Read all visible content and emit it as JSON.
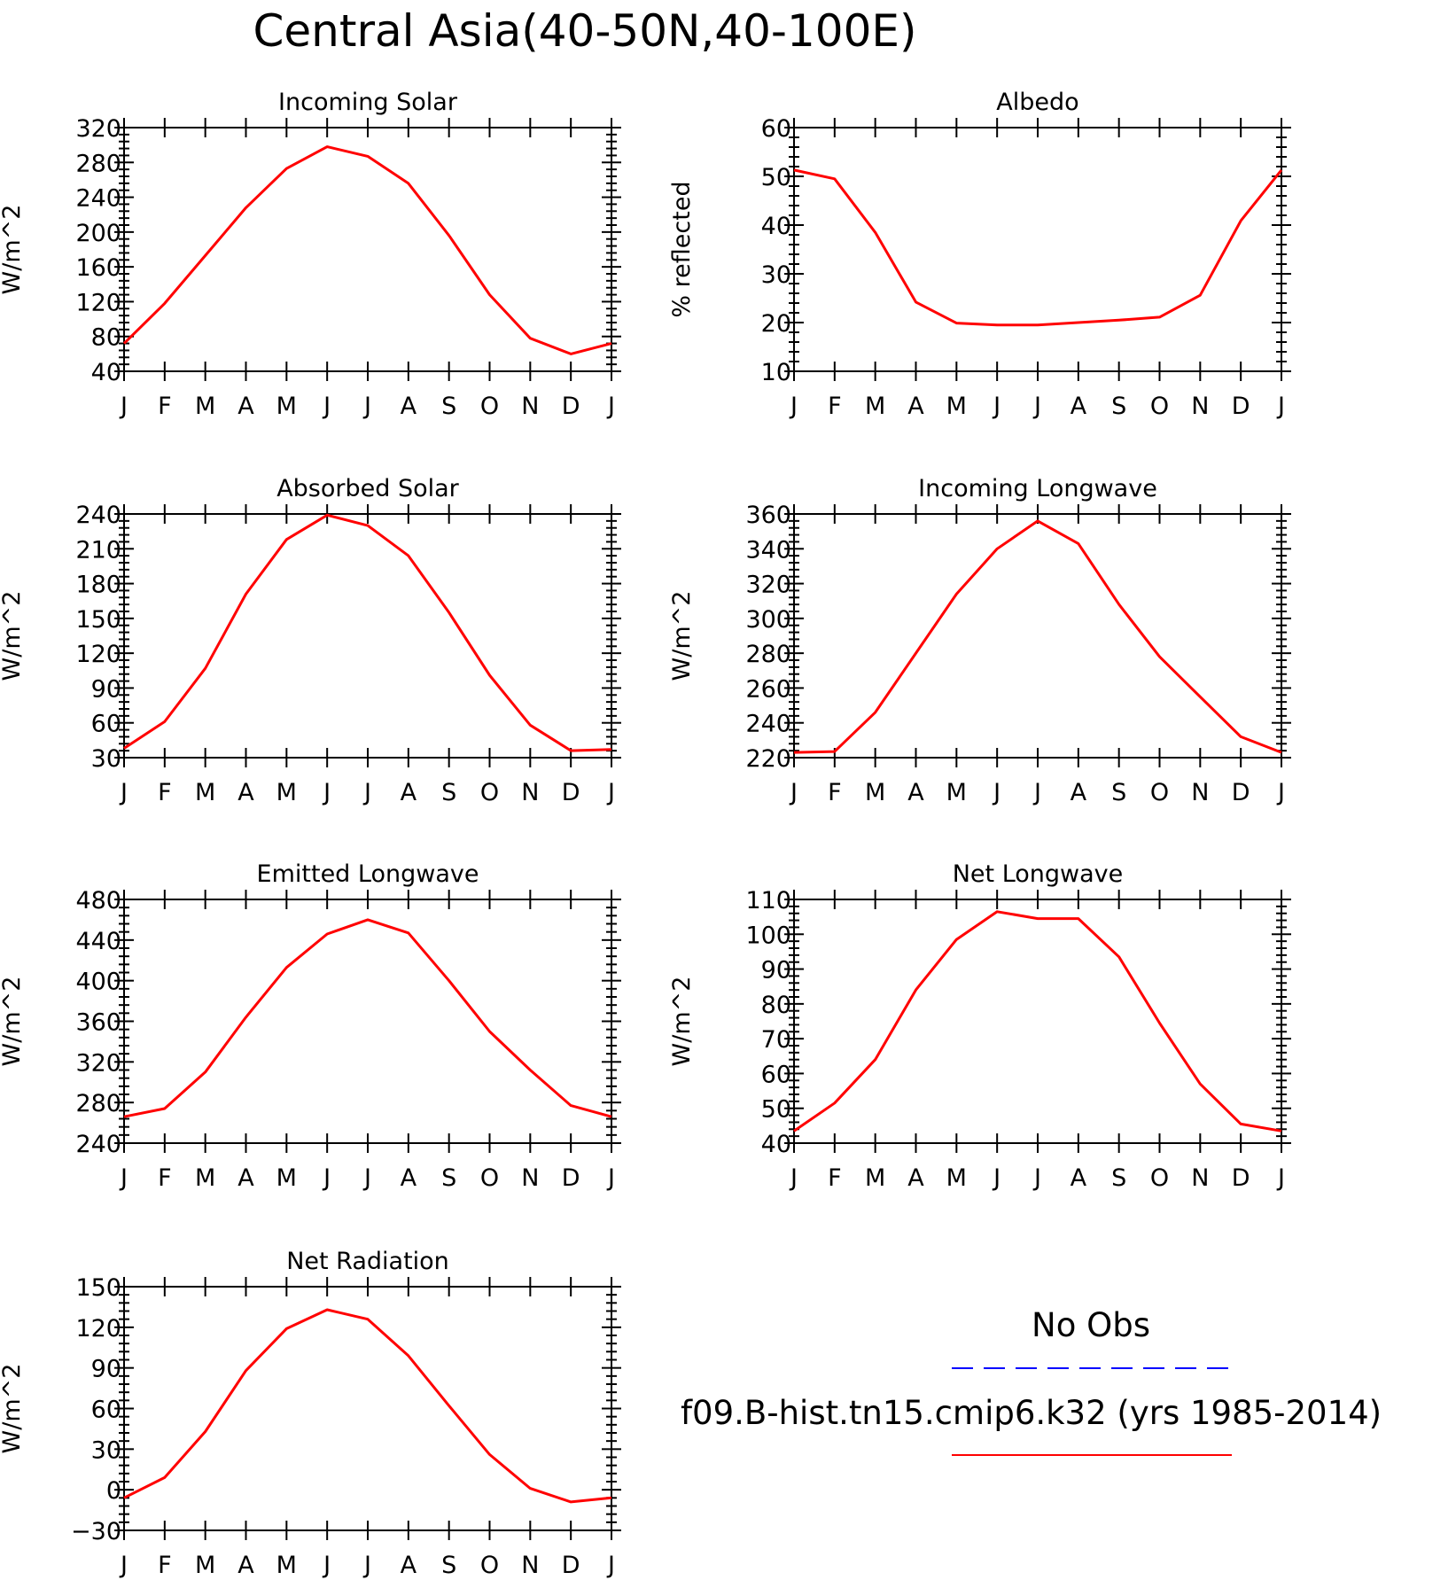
{
  "title": "Central Asia(40-50N,40-100E)",
  "months": [
    "J",
    "F",
    "M",
    "A",
    "M",
    "J",
    "J",
    "A",
    "S",
    "O",
    "N",
    "D",
    "J"
  ],
  "colors": {
    "model": "#ff0000",
    "obs": "#0000ff",
    "axis": "#000000"
  },
  "legend": {
    "obs_label": "No Obs",
    "model_label": "f09.B-hist.tn15.cmip6.k32 (yrs 1985-2014)"
  },
  "chart_data": [
    {
      "type": "line",
      "title": "Incoming Solar",
      "ylabel": "W/m^2",
      "ylim": [
        40,
        320
      ],
      "yticks": [
        40,
        80,
        120,
        160,
        200,
        240,
        280,
        320
      ],
      "categories": [
        "J",
        "F",
        "M",
        "A",
        "M",
        "J",
        "J",
        "A",
        "S",
        "O",
        "N",
        "D",
        "J"
      ],
      "series": [
        {
          "values": [
            72,
            118,
            173,
            228,
            273,
            298,
            287,
            256,
            196,
            128,
            78,
            60,
            72
          ]
        }
      ]
    },
    {
      "type": "line",
      "title": "Albedo",
      "ylabel": "% reflected",
      "ylim": [
        10,
        60
      ],
      "yticks": [
        10,
        20,
        30,
        40,
        50,
        60
      ],
      "categories": [
        "J",
        "F",
        "M",
        "A",
        "M",
        "J",
        "J",
        "A",
        "S",
        "O",
        "N",
        "D",
        "J"
      ],
      "series": [
        {
          "values": [
            51.3,
            49.5,
            38.5,
            24.2,
            19.9,
            19.5,
            19.5,
            20,
            20.5,
            21.1,
            25.6,
            40.9,
            51.3
          ]
        }
      ]
    },
    {
      "type": "line",
      "title": "Absorbed Solar",
      "ylabel": "W/m^2",
      "ylim": [
        30,
        240
      ],
      "yticks": [
        30,
        60,
        90,
        120,
        150,
        180,
        210,
        240
      ],
      "categories": [
        "J",
        "F",
        "M",
        "A",
        "M",
        "J",
        "J",
        "A",
        "S",
        "O",
        "N",
        "D",
        "J"
      ],
      "series": [
        {
          "values": [
            38,
            61,
            107,
            171,
            218,
            239,
            230,
            204,
            155,
            101,
            58,
            36,
            37
          ]
        }
      ]
    },
    {
      "type": "line",
      "title": "Incoming Longwave",
      "ylabel": "W/m^2",
      "ylim": [
        220,
        360
      ],
      "yticks": [
        220,
        240,
        260,
        280,
        300,
        320,
        340,
        360
      ],
      "categories": [
        "J",
        "F",
        "M",
        "A",
        "M",
        "J",
        "J",
        "A",
        "S",
        "O",
        "N",
        "D",
        "J"
      ],
      "series": [
        {
          "values": [
            223,
            223.5,
            246,
            280,
            314,
            340,
            356,
            343,
            308,
            278,
            255,
            232,
            223
          ]
        }
      ]
    },
    {
      "type": "line",
      "title": "Emitted Longwave",
      "ylabel": "W/m^2",
      "ylim": [
        240,
        480
      ],
      "yticks": [
        240,
        280,
        320,
        360,
        400,
        440,
        480
      ],
      "categories": [
        "J",
        "F",
        "M",
        "A",
        "M",
        "J",
        "J",
        "A",
        "S",
        "O",
        "N",
        "D",
        "J"
      ],
      "series": [
        {
          "values": [
            266,
            274,
            310,
            364,
            413,
            446,
            460,
            447,
            400,
            350,
            312,
            277,
            266
          ]
        }
      ]
    },
    {
      "type": "line",
      "title": "Net Longwave",
      "ylabel": "W/m^2",
      "ylim": [
        40,
        110
      ],
      "yticks": [
        40,
        50,
        60,
        70,
        80,
        90,
        100,
        110
      ],
      "categories": [
        "J",
        "F",
        "M",
        "A",
        "M",
        "J",
        "J",
        "A",
        "S",
        "O",
        "N",
        "D",
        "J"
      ],
      "series": [
        {
          "values": [
            43.5,
            51.5,
            64,
            84,
            98.5,
            106.5,
            104.5,
            104.5,
            93.5,
            74.5,
            57,
            45.5,
            43.5
          ]
        }
      ]
    },
    {
      "type": "line",
      "title": "Net Radiation",
      "ylabel": "W/m^2",
      "ylim": [
        -30,
        150
      ],
      "yticks": [
        -30,
        0,
        30,
        60,
        90,
        120,
        150
      ],
      "categories": [
        "J",
        "F",
        "M",
        "A",
        "M",
        "J",
        "J",
        "A",
        "S",
        "O",
        "N",
        "D",
        "J"
      ],
      "series": [
        {
          "values": [
            -6,
            9,
            43,
            88,
            119,
            133,
            126,
            99,
            62,
            26,
            1,
            -9,
            -6
          ]
        }
      ]
    }
  ]
}
